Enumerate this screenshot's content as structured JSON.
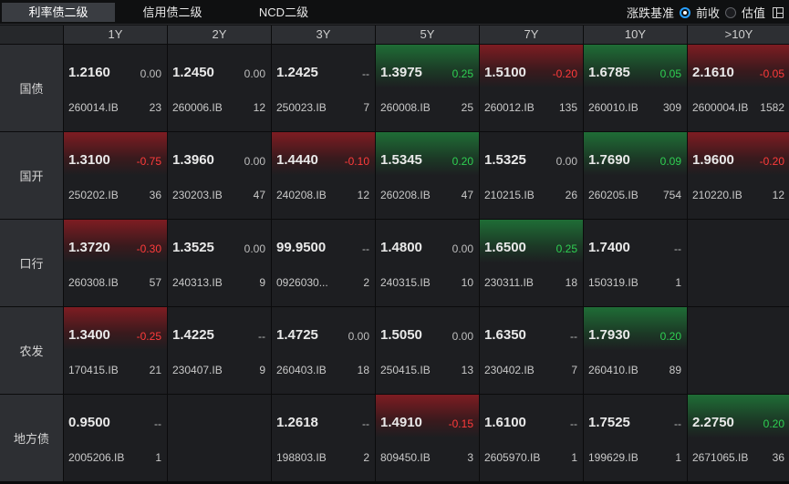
{
  "tabs": [
    {
      "label": "利率债二级",
      "active": true
    },
    {
      "label": "信用债二级",
      "active": false
    },
    {
      "label": "NCD二级",
      "active": false
    }
  ],
  "controls": {
    "basis_label": "涨跌基准",
    "option_prev": "前收",
    "option_val": "估值",
    "selected": "前收"
  },
  "columns": [
    "1Y",
    "2Y",
    "3Y",
    "5Y",
    "7Y",
    "10Y",
    ">10Y"
  ],
  "rows": [
    {
      "label": "国债",
      "cells": [
        {
          "price": "1.2160",
          "change": "0.00",
          "dir": "flat",
          "code": "260014.IB",
          "volume": "23"
        },
        {
          "price": "1.2450",
          "change": "0.00",
          "dir": "flat",
          "code": "260006.IB",
          "volume": "12"
        },
        {
          "price": "1.2425",
          "change": "--",
          "dir": "flat",
          "code": "250023.IB",
          "volume": "7"
        },
        {
          "price": "1.3975",
          "change": "0.25",
          "dir": "down",
          "code": "260008.IB",
          "volume": "25"
        },
        {
          "price": "1.5100",
          "change": "-0.20",
          "dir": "up",
          "code": "260012.IB",
          "volume": "135"
        },
        {
          "price": "1.6785",
          "change": "0.05",
          "dir": "down",
          "code": "260010.IB",
          "volume": "309"
        },
        {
          "price": "2.1610",
          "change": "-0.05",
          "dir": "up",
          "code": "2600004.IB",
          "volume": "1582"
        }
      ]
    },
    {
      "label": "国开",
      "cells": [
        {
          "price": "1.3100",
          "change": "-0.75",
          "dir": "up",
          "code": "250202.IB",
          "volume": "36"
        },
        {
          "price": "1.3960",
          "change": "0.00",
          "dir": "flat",
          "code": "230203.IB",
          "volume": "47"
        },
        {
          "price": "1.4440",
          "change": "-0.10",
          "dir": "up",
          "code": "240208.IB",
          "volume": "12"
        },
        {
          "price": "1.5345",
          "change": "0.20",
          "dir": "down",
          "code": "260208.IB",
          "volume": "47"
        },
        {
          "price": "1.5325",
          "change": "0.00",
          "dir": "flat",
          "code": "210215.IB",
          "volume": "26"
        },
        {
          "price": "1.7690",
          "change": "0.09",
          "dir": "down",
          "code": "260205.IB",
          "volume": "754"
        },
        {
          "price": "1.9600",
          "change": "-0.20",
          "dir": "up",
          "code": "210220.IB",
          "volume": "12"
        }
      ]
    },
    {
      "label": "口行",
      "cells": [
        {
          "price": "1.3720",
          "change": "-0.30",
          "dir": "up",
          "code": "260308.IB",
          "volume": "57"
        },
        {
          "price": "1.3525",
          "change": "0.00",
          "dir": "flat",
          "code": "240313.IB",
          "volume": "9"
        },
        {
          "price": "99.9500",
          "change": "--",
          "dir": "flat",
          "code": "0926030...",
          "volume": "2"
        },
        {
          "price": "1.4800",
          "change": "0.00",
          "dir": "flat",
          "code": "240315.IB",
          "volume": "10"
        },
        {
          "price": "1.6500",
          "change": "0.25",
          "dir": "down",
          "code": "230311.IB",
          "volume": "18"
        },
        {
          "price": "1.7400",
          "change": "--",
          "dir": "flat",
          "code": "150319.IB",
          "volume": "1"
        },
        null
      ]
    },
    {
      "label": "农发",
      "cells": [
        {
          "price": "1.3400",
          "change": "-0.25",
          "dir": "up",
          "code": "170415.IB",
          "volume": "21"
        },
        {
          "price": "1.4225",
          "change": "--",
          "dir": "flat",
          "code": "230407.IB",
          "volume": "9"
        },
        {
          "price": "1.4725",
          "change": "0.00",
          "dir": "flat",
          "code": "260403.IB",
          "volume": "18"
        },
        {
          "price": "1.5050",
          "change": "0.00",
          "dir": "flat",
          "code": "250415.IB",
          "volume": "13"
        },
        {
          "price": "1.6350",
          "change": "--",
          "dir": "flat",
          "code": "230402.IB",
          "volume": "7"
        },
        {
          "price": "1.7930",
          "change": "0.20",
          "dir": "down",
          "code": "260410.IB",
          "volume": "89"
        },
        null
      ]
    },
    {
      "label": "地方债",
      "cells": [
        {
          "price": "0.9500",
          "change": "--",
          "dir": "flat",
          "code": "2005206.IB",
          "volume": "1"
        },
        null,
        {
          "price": "1.2618",
          "change": "--",
          "dir": "flat",
          "code": "198803.IB",
          "volume": "2"
        },
        {
          "price": "1.4910",
          "change": "-0.15",
          "dir": "up",
          "code": "809450.IB",
          "volume": "3"
        },
        {
          "price": "1.6100",
          "change": "--",
          "dir": "flat",
          "code": "2605970.IB",
          "volume": "1"
        },
        {
          "price": "1.7525",
          "change": "--",
          "dir": "flat",
          "code": "199629.IB",
          "volume": "1"
        },
        {
          "price": "2.2750",
          "change": "0.20",
          "dir": "down",
          "code": "2671065.IB",
          "volume": "36"
        }
      ]
    }
  ],
  "colors": {
    "up": "#ff3b3b",
    "down": "#2fcf52",
    "accent": "#28a0ff"
  }
}
